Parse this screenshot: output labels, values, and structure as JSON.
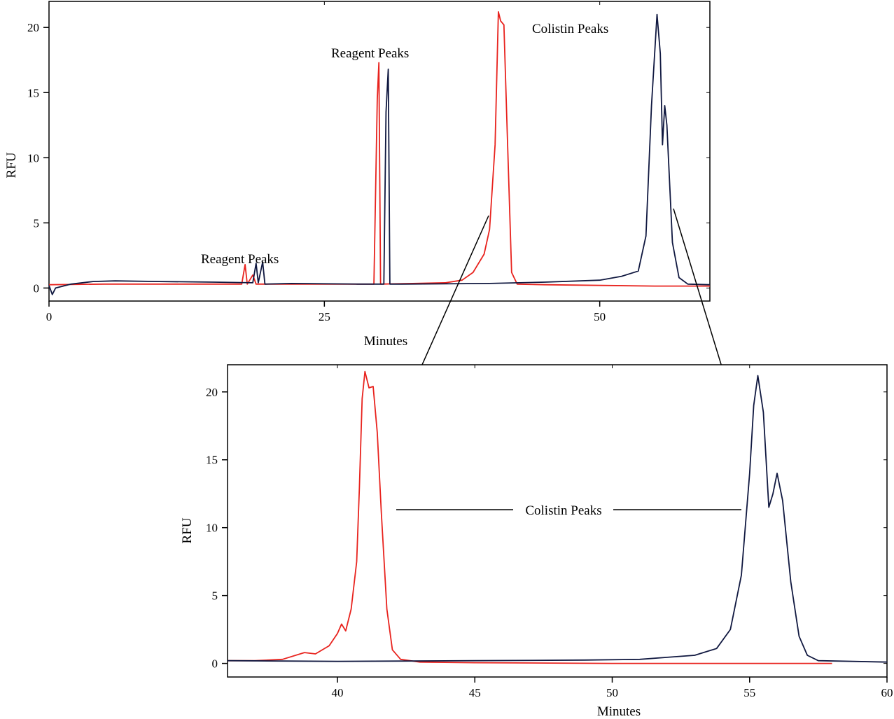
{
  "chart_data": [
    {
      "type": "line",
      "xlabel": "Minutes",
      "ylabel": "RFU",
      "xlim": [
        0,
        60
      ],
      "ylim": [
        -1,
        22
      ],
      "xticks": [
        0,
        25,
        50
      ],
      "yticks": [
        0,
        5,
        10,
        15,
        20
      ],
      "grid": false,
      "colors": [
        "#e8231e",
        "#101840"
      ],
      "annotations": [
        {
          "text": "Reagent Peaks",
          "x": 18,
          "y": 2.7
        },
        {
          "text": "Reagent Peaks",
          "x": 30.5,
          "y": 18.1
        },
        {
          "text": "Colistin Peaks",
          "x": 48.5,
          "y": 20.1
        }
      ],
      "series": [
        {
          "values": [
            [
              0,
              0.25
            ],
            [
              5,
              0.3
            ],
            [
              10,
              0.3
            ],
            [
              17.5,
              0.3
            ],
            [
              17.8,
              1.8
            ],
            [
              18.0,
              0.3
            ],
            [
              18.5,
              1.0
            ],
            [
              18.8,
              0.3
            ],
            [
              20,
              0.3
            ],
            [
              25,
              0.3
            ],
            [
              29.5,
              0.3
            ],
            [
              29.8,
              14.5
            ],
            [
              29.95,
              17.3
            ],
            [
              30.1,
              0.3
            ],
            [
              33,
              0.35
            ],
            [
              36,
              0.4
            ],
            [
              37.5,
              0.6
            ],
            [
              38.5,
              1.2
            ],
            [
              39.5,
              2.6
            ],
            [
              40.0,
              4.5
            ],
            [
              40.5,
              11.0
            ],
            [
              40.8,
              21.2
            ],
            [
              41.0,
              20.5
            ],
            [
              41.3,
              20.2
            ],
            [
              41.6,
              12.0
            ],
            [
              42.0,
              1.2
            ],
            [
              42.5,
              0.3
            ],
            [
              45,
              0.25
            ],
            [
              55,
              0.15
            ],
            [
              60,
              0.15
            ]
          ]
        },
        {
          "values": [
            [
              0,
              0.2
            ],
            [
              0.3,
              -0.5
            ],
            [
              0.6,
              0
            ],
            [
              2,
              0.3
            ],
            [
              4,
              0.5
            ],
            [
              6,
              0.55
            ],
            [
              10,
              0.5
            ],
            [
              15,
              0.45
            ],
            [
              18.5,
              0.4
            ],
            [
              18.8,
              1.9
            ],
            [
              19.0,
              0.4
            ],
            [
              19.4,
              2.0
            ],
            [
              19.6,
              0.3
            ],
            [
              22,
              0.35
            ],
            [
              28,
              0.3
            ],
            [
              30.4,
              0.3
            ],
            [
              30.6,
              13.5
            ],
            [
              30.8,
              16.8
            ],
            [
              30.95,
              0.3
            ],
            [
              32,
              0.3
            ],
            [
              40,
              0.35
            ],
            [
              45,
              0.45
            ],
            [
              50,
              0.6
            ],
            [
              52,
              0.9
            ],
            [
              53.5,
              1.3
            ],
            [
              54.2,
              4.0
            ],
            [
              54.7,
              14.0
            ],
            [
              55.2,
              21.0
            ],
            [
              55.5,
              18.0
            ],
            [
              55.7,
              11.0
            ],
            [
              55.9,
              14.0
            ],
            [
              56.1,
              12.5
            ],
            [
              56.6,
              3.5
            ],
            [
              57.2,
              0.8
            ],
            [
              58,
              0.3
            ],
            [
              60,
              0.25
            ]
          ]
        }
      ]
    },
    {
      "type": "line",
      "xlabel": "Minutes",
      "ylabel": "RFU",
      "xlim": [
        36,
        60
      ],
      "ylim": [
        -1,
        22
      ],
      "xticks": [
        40,
        45,
        50,
        55,
        60
      ],
      "yticks": [
        0,
        5,
        10,
        15,
        20
      ],
      "grid": false,
      "colors": [
        "#e8231e",
        "#101840"
      ],
      "annotations": [
        {
          "text": "Colistin Peaks",
          "x": 47.5,
          "y": 11.1
        }
      ],
      "series": [
        {
          "values": [
            [
              36,
              0.2
            ],
            [
              37,
              0.2
            ],
            [
              38,
              0.3
            ],
            [
              38.8,
              0.8
            ],
            [
              39.2,
              0.7
            ],
            [
              39.7,
              1.3
            ],
            [
              40.0,
              2.2
            ],
            [
              40.15,
              2.9
            ],
            [
              40.3,
              2.4
            ],
            [
              40.5,
              4.0
            ],
            [
              40.7,
              7.5
            ],
            [
              40.8,
              13.0
            ],
            [
              40.9,
              19.5
            ],
            [
              41.0,
              21.5
            ],
            [
              41.15,
              20.3
            ],
            [
              41.3,
              20.4
            ],
            [
              41.45,
              17.0
            ],
            [
              41.6,
              11.0
            ],
            [
              41.8,
              4.0
            ],
            [
              42.0,
              1.0
            ],
            [
              42.3,
              0.3
            ],
            [
              43,
              0.1
            ],
            [
              45,
              0.05
            ],
            [
              50,
              0.0
            ],
            [
              55,
              0.0
            ],
            [
              58,
              0.0
            ]
          ]
        },
        {
          "values": [
            [
              36,
              0.2
            ],
            [
              40,
              0.15
            ],
            [
              45,
              0.2
            ],
            [
              49,
              0.25
            ],
            [
              51,
              0.3
            ],
            [
              52,
              0.45
            ],
            [
              53,
              0.6
            ],
            [
              53.8,
              1.1
            ],
            [
              54.3,
              2.5
            ],
            [
              54.7,
              6.5
            ],
            [
              55.0,
              14.0
            ],
            [
              55.15,
              19.0
            ],
            [
              55.3,
              21.2
            ],
            [
              55.5,
              18.5
            ],
            [
              55.7,
              11.5
            ],
            [
              55.85,
              12.5
            ],
            [
              56.0,
              14.0
            ],
            [
              56.2,
              12.0
            ],
            [
              56.5,
              6.0
            ],
            [
              56.8,
              2.0
            ],
            [
              57.1,
              0.6
            ],
            [
              57.5,
              0.2
            ],
            [
              60,
              0.1
            ]
          ]
        }
      ]
    }
  ]
}
